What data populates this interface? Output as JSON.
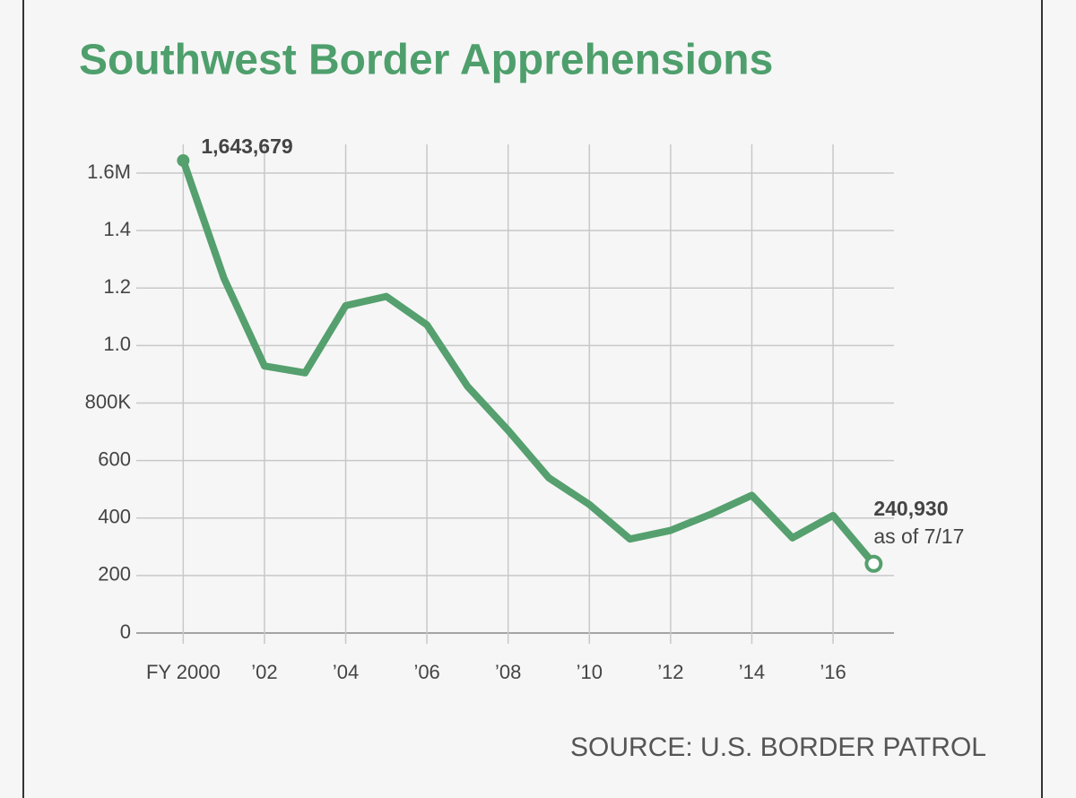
{
  "chart_data": {
    "type": "line",
    "title": "Southwest Border Apprehensions",
    "source": "SOURCE: U.S. BORDER PATROL",
    "x": [
      2000,
      2001,
      2002,
      2003,
      2004,
      2005,
      2006,
      2007,
      2008,
      2009,
      2010,
      2011,
      2012,
      2013,
      2014,
      2015,
      2016,
      2017
    ],
    "series": [
      {
        "name": "Apprehensions",
        "color": "#55a06e",
        "values": [
          1643679,
          1235000,
          929000,
          905000,
          1139000,
          1171000,
          1072000,
          858000,
          705000,
          540000,
          447000,
          327000,
          357000,
          414000,
          479000,
          331000,
          409000,
          240930
        ],
        "value_labels": [
          "1,643,679",
          null,
          null,
          null,
          null,
          null,
          null,
          null,
          null,
          null,
          null,
          null,
          null,
          null,
          null,
          null,
          null,
          "240,930"
        ]
      }
    ],
    "annotations": [
      {
        "text": "as of 7/17",
        "x": 2017
      }
    ],
    "xlim": [
      1998.8,
      2017.5
    ],
    "xticks": [
      {
        "value": 2000,
        "label": "FY 2000"
      },
      {
        "value": 2002,
        "label": "’02"
      },
      {
        "value": 2004,
        "label": "’04"
      },
      {
        "value": 2006,
        "label": "’06"
      },
      {
        "value": 2008,
        "label": "’08"
      },
      {
        "value": 2010,
        "label": "’10"
      },
      {
        "value": 2012,
        "label": "’12"
      },
      {
        "value": 2014,
        "label": "’14"
      },
      {
        "value": 2016,
        "label": "’16"
      }
    ],
    "ylim": [
      0,
      1700000
    ],
    "yticks": [
      0,
      {
        "value": 200000,
        "label": "200"
      },
      {
        "value": 400000,
        "label": "400"
      },
      {
        "value": 600000,
        "label": "600"
      },
      {
        "value": 800000,
        "label": "800K"
      },
      {
        "value": 1000000,
        "label": "1.0"
      },
      {
        "value": 1200000,
        "label": "1.2"
      },
      {
        "value": 1400000,
        "label": "1.4"
      },
      {
        "value": 1600000,
        "label": "1.6M"
      }
    ],
    "grid": true
  }
}
